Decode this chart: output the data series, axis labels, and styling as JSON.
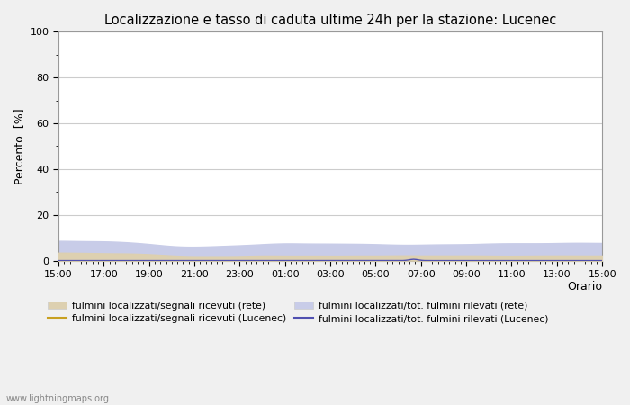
{
  "title": "Localizzazione e tasso di caduta ultime 24h per la stazione: Lucenec",
  "ylabel": "Percento  [%]",
  "xlabel": "Orario",
  "ylim": [
    0,
    100
  ],
  "yticks": [
    0,
    20,
    40,
    60,
    80,
    100
  ],
  "ytick_minor": [
    10,
    30,
    50,
    70,
    90
  ],
  "xtick_labels": [
    "15:00",
    "17:00",
    "19:00",
    "21:00",
    "23:00",
    "01:00",
    "03:00",
    "05:00",
    "07:00",
    "09:00",
    "11:00",
    "13:00",
    "15:00"
  ],
  "background_color": "#f0f0f0",
  "plot_bg_color": "#ffffff",
  "grid_color": "#cccccc",
  "fill_rete_color": "#ddd0b0",
  "fill_lucenec_color": "#c8cce8",
  "line_rete_color": "#c8a020",
  "line_lucenec_color": "#5050b0",
  "watermark": "www.lightningmaps.org",
  "legend": {
    "label1": "fulmini localizzati/segnali ricevuti (rete)",
    "label2": "fulmini localizzati/segnali ricevuti (Lucenec)",
    "label3": "fulmini localizzati/tot. fulmini rilevati (rete)",
    "label4": "fulmini localizzati/tot. fulmini rilevati (Lucenec)"
  }
}
